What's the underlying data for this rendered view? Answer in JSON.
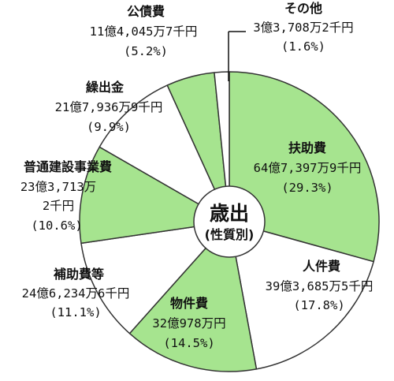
{
  "chart_data": {
    "type": "pie",
    "title": "歳出",
    "subtitle": "(性質別)",
    "colors": {
      "green": "#a6e48f",
      "white": "#ffffff",
      "stroke": "#333333"
    },
    "slices": [
      {
        "name": "扶助費",
        "amount": "64億7,397万9千円",
        "percent": 29.3,
        "percent_label": "(29.3%)",
        "fill": "green"
      },
      {
        "name": "人件費",
        "amount": "39億3,685万5千円",
        "percent": 17.8,
        "percent_label": "(17.8%)",
        "fill": "white"
      },
      {
        "name": "物件費",
        "amount": "32億978万円",
        "percent": 14.5,
        "percent_label": "(14.5%)",
        "fill": "green"
      },
      {
        "name": "補助費等",
        "amount": "24億6,234万6千円",
        "percent": 11.1,
        "percent_label": "(11.1%)",
        "fill": "white"
      },
      {
        "name": "普通建設事業費",
        "amount": "23億3,713万",
        "amount_cont": "2千円",
        "percent": 10.6,
        "percent_label": "(10.6%)",
        "fill": "green"
      },
      {
        "name": "繰出金",
        "amount": "21億7,936万9千円",
        "percent": 9.9,
        "percent_label": "(9.9%)",
        "fill": "white"
      },
      {
        "name": "公債費",
        "amount": "11億4,045万7千円",
        "percent": 5.2,
        "percent_label": "(5.2%)",
        "fill": "green"
      },
      {
        "name": "その他",
        "amount": "3億3,708万2千円",
        "percent": 1.6,
        "percent_label": "(1.6%)",
        "fill": "white"
      }
    ]
  }
}
